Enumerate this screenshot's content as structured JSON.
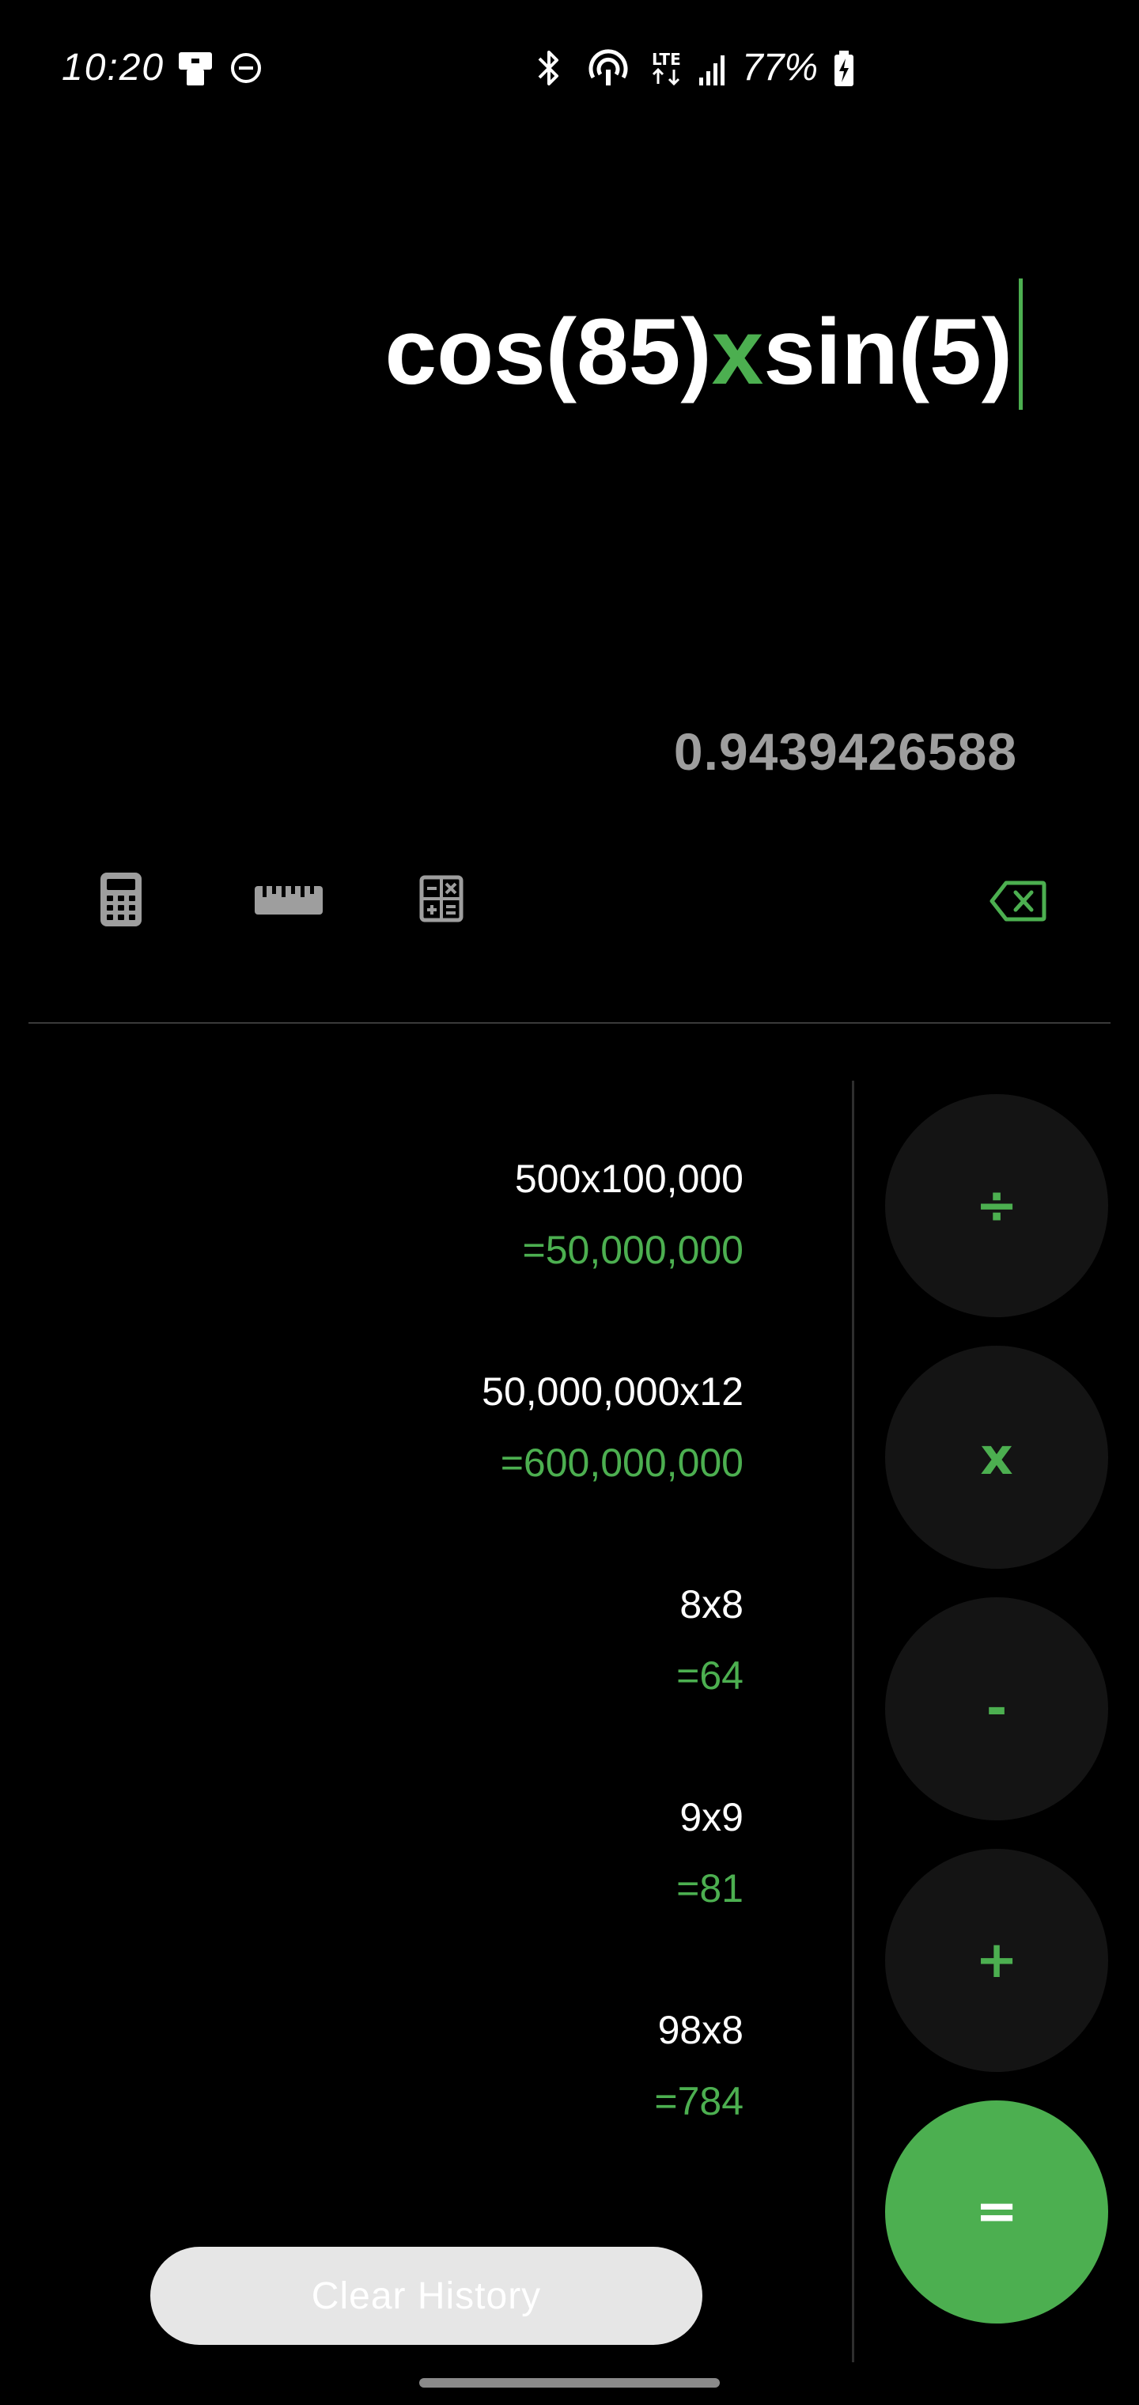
{
  "status_bar": {
    "time": "10:20",
    "battery_percent": "77%",
    "icons": [
      "notification-icon",
      "dnd-icon",
      "bluetooth-icon",
      "hotspot-icon",
      "lte-icon",
      "signal-icon",
      "battery-charging-icon"
    ]
  },
  "display": {
    "expression_part1": "cos(85)",
    "expression_operator": "x",
    "expression_part2": "sin(5)",
    "result": "0.9439426588"
  },
  "tools": [
    "calculator-icon",
    "ruler-icon",
    "scientific-icon",
    "backspace-icon"
  ],
  "history": [
    {
      "expression": "500x100,000",
      "result": "=50,000,000"
    },
    {
      "expression": "50,000,000x12",
      "result": "=600,000,000"
    },
    {
      "expression": "8x8",
      "result": "=64"
    },
    {
      "expression": "9x9",
      "result": "=81"
    },
    {
      "expression": "98x8",
      "result": "=784"
    }
  ],
  "operators": {
    "divide": "÷",
    "multiply": "x",
    "subtract": "-",
    "add": "+",
    "equals": "="
  },
  "clear_history_label": "Clear History",
  "colors": {
    "accent": "#4caf50",
    "background": "#000000",
    "button_bg": "#141414",
    "result_gray": "#9e9e9e"
  }
}
